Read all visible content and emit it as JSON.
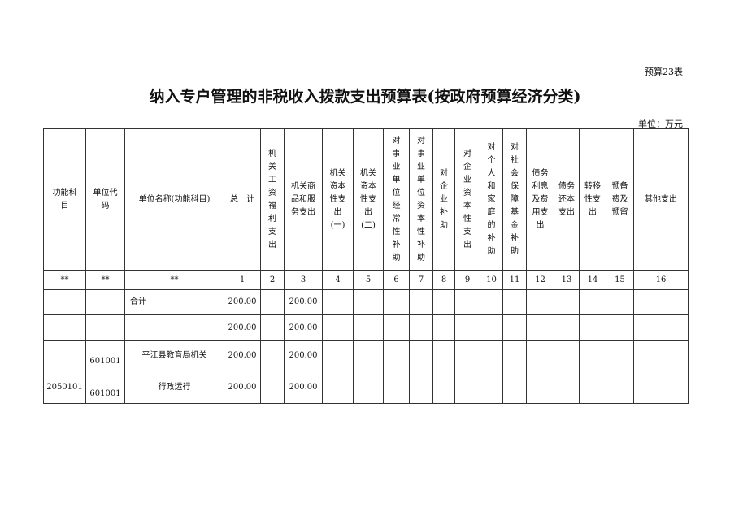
{
  "table_no": "预算23表",
  "title": "纳入专户管理的非税收入拨款支出预算表(按政府预算经济分类)",
  "unit": "单位：万元",
  "headers": [
    "功能科目",
    "单位代码",
    "单位名称(功能科目)",
    "总　计",
    "机关工资福利支出",
    "机关商品和服务支出",
    "机关资本性支出(一)",
    "机关资本性支出(二)",
    "对事业单位经常性补助",
    "对事业单位资本性补助",
    "对企业补助",
    "对企业资本性支出",
    "对个人和家庭的补助",
    "对社会保障基金补助",
    "债务利息及费用支出",
    "债务还本支出",
    "转移性支出",
    "预备费及预留",
    "其他支出"
  ],
  "col_numbers": [
    "**",
    "**",
    "**",
    "1",
    "2",
    "3",
    "4",
    "5",
    "6",
    "7",
    "8",
    "9",
    "10",
    "11",
    "12",
    "13",
    "14",
    "15",
    "16"
  ],
  "rows": [
    {
      "func": "",
      "code": "",
      "name": "合计",
      "total": "200.00",
      "c2": "",
      "c3": "200.00"
    },
    {
      "func": "",
      "code": "",
      "name": "",
      "total": "200.00",
      "c2": "",
      "c3": "200.00"
    },
    {
      "func": "",
      "code": "601001",
      "name": "平江县教育局机关",
      "total": "200.00",
      "c2": "",
      "c3": "200.00"
    },
    {
      "func": "2050101",
      "code": "601001",
      "name": "行政运行",
      "total": "200.00",
      "c2": "",
      "c3": "200.00"
    }
  ]
}
